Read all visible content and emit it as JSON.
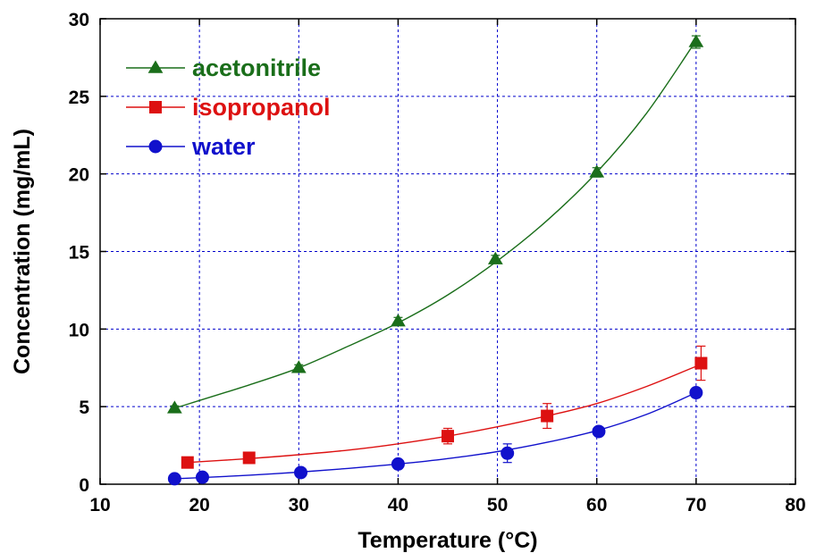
{
  "chart_data": {
    "type": "line",
    "title": "",
    "xlabel": "Temperature (°C)",
    "ylabel": "Concentration (mg/mL)",
    "xlim": [
      10,
      80
    ],
    "ylim": [
      0,
      30
    ],
    "xticks": [
      "10",
      "20",
      "30",
      "40",
      "50",
      "60",
      "70",
      "80"
    ],
    "yticks": [
      "0",
      "5",
      "10",
      "15",
      "20",
      "25",
      "30"
    ],
    "grid": true,
    "legend_position": "top-left",
    "series": [
      {
        "name": "acetonitrile",
        "color": "#1a6e1a",
        "marker": "triangle",
        "points": [
          [
            17.5,
            4.9
          ],
          [
            30,
            7.5
          ],
          [
            40,
            10.5
          ],
          [
            49.8,
            14.5
          ],
          [
            60,
            20.1
          ],
          [
            70,
            28.5
          ]
        ],
        "errors": [
          0.15,
          0.2,
          0.25,
          0.25,
          0.3,
          0.4
        ],
        "fit": [
          [
            17.5,
            4.9
          ],
          [
            25,
            6.4
          ],
          [
            30,
            7.5
          ],
          [
            35,
            8.9
          ],
          [
            40,
            10.4
          ],
          [
            45,
            12.2
          ],
          [
            50,
            14.4
          ],
          [
            55,
            17.0
          ],
          [
            60,
            20.1
          ],
          [
            65,
            23.9
          ],
          [
            70,
            28.6
          ]
        ]
      },
      {
        "name": "isopropanol",
        "color": "#dd1111",
        "marker": "square",
        "points": [
          [
            18.8,
            1.4
          ],
          [
            25,
            1.7
          ],
          [
            45,
            3.1
          ],
          [
            55,
            4.4
          ],
          [
            70.5,
            7.8
          ]
        ],
        "errors": [
          0.15,
          0.3,
          0.5,
          0.8,
          1.1
        ],
        "fit": [
          [
            18.8,
            1.4
          ],
          [
            25,
            1.65
          ],
          [
            30,
            1.9
          ],
          [
            35,
            2.2
          ],
          [
            40,
            2.6
          ],
          [
            45,
            3.1
          ],
          [
            50,
            3.7
          ],
          [
            55,
            4.4
          ],
          [
            60,
            5.2
          ],
          [
            65,
            6.3
          ],
          [
            70,
            7.6
          ]
        ]
      },
      {
        "name": "water",
        "color": "#1111cc",
        "marker": "circle",
        "points": [
          [
            17.5,
            0.35
          ],
          [
            20.3,
            0.45
          ],
          [
            30.2,
            0.75
          ],
          [
            40,
            1.3
          ],
          [
            51,
            2.0
          ],
          [
            60.2,
            3.4
          ],
          [
            70,
            5.9
          ]
        ],
        "errors": [
          0.05,
          0.05,
          0.1,
          0.15,
          0.6,
          0.2,
          0.3
        ],
        "fit": [
          [
            17.5,
            0.35
          ],
          [
            20,
            0.42
          ],
          [
            25,
            0.58
          ],
          [
            30,
            0.78
          ],
          [
            35,
            1.02
          ],
          [
            40,
            1.3
          ],
          [
            45,
            1.65
          ],
          [
            50,
            2.1
          ],
          [
            55,
            2.7
          ],
          [
            60,
            3.45
          ],
          [
            65,
            4.5
          ],
          [
            70,
            5.9
          ]
        ]
      }
    ]
  }
}
